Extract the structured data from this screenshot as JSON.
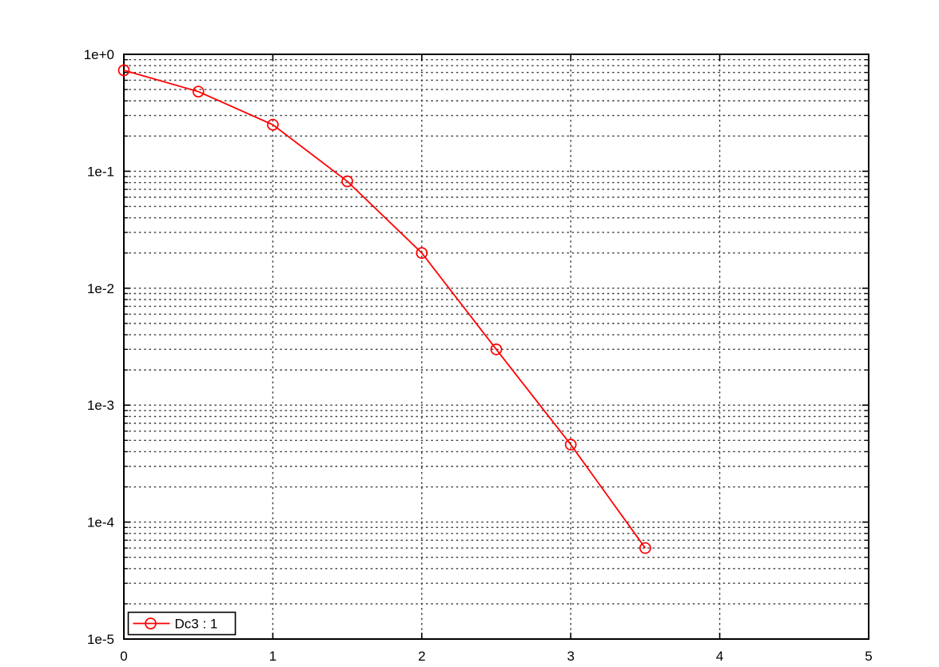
{
  "colors": {
    "series": "#ff0000",
    "grid": "#3c3c3c",
    "axis": "#000000",
    "background": "#ffffff"
  },
  "chart_data": {
    "type": "line",
    "title": "",
    "xlabel": "",
    "ylabel": "",
    "x_axis": {
      "scale": "linear",
      "min": 0,
      "max": 5,
      "tick_values": [
        0,
        1,
        2,
        3,
        4,
        5
      ],
      "tick_labels": [
        "0",
        "1",
        "2",
        "3",
        "4",
        "5"
      ]
    },
    "y_axis": {
      "scale": "log",
      "min": 1e-05,
      "max": 1,
      "tick_values": [
        1,
        0.1,
        0.01,
        0.001,
        0.0001,
        1e-05
      ],
      "tick_labels": [
        "1e+0",
        "1e-1",
        "1e-2",
        "1e-3",
        "1e-4",
        "1e-5"
      ]
    },
    "grid": {
      "major": true,
      "minor": true,
      "style": "dotted"
    },
    "legend": {
      "position": "bottom-left",
      "border": true
    },
    "series": [
      {
        "name": "Dc3 : 1",
        "color": "#ff0000",
        "marker": "open-circle",
        "points": [
          {
            "x": 0,
            "y": 0.73
          },
          {
            "x": 0.5,
            "y": 0.48
          },
          {
            "x": 1,
            "y": 0.25
          },
          {
            "x": 1.5,
            "y": 0.082
          },
          {
            "x": 2,
            "y": 0.02
          },
          {
            "x": 2.5,
            "y": 0.003
          },
          {
            "x": 3,
            "y": 0.00046
          },
          {
            "x": 3.5,
            "y": 6e-05
          }
        ]
      }
    ]
  }
}
